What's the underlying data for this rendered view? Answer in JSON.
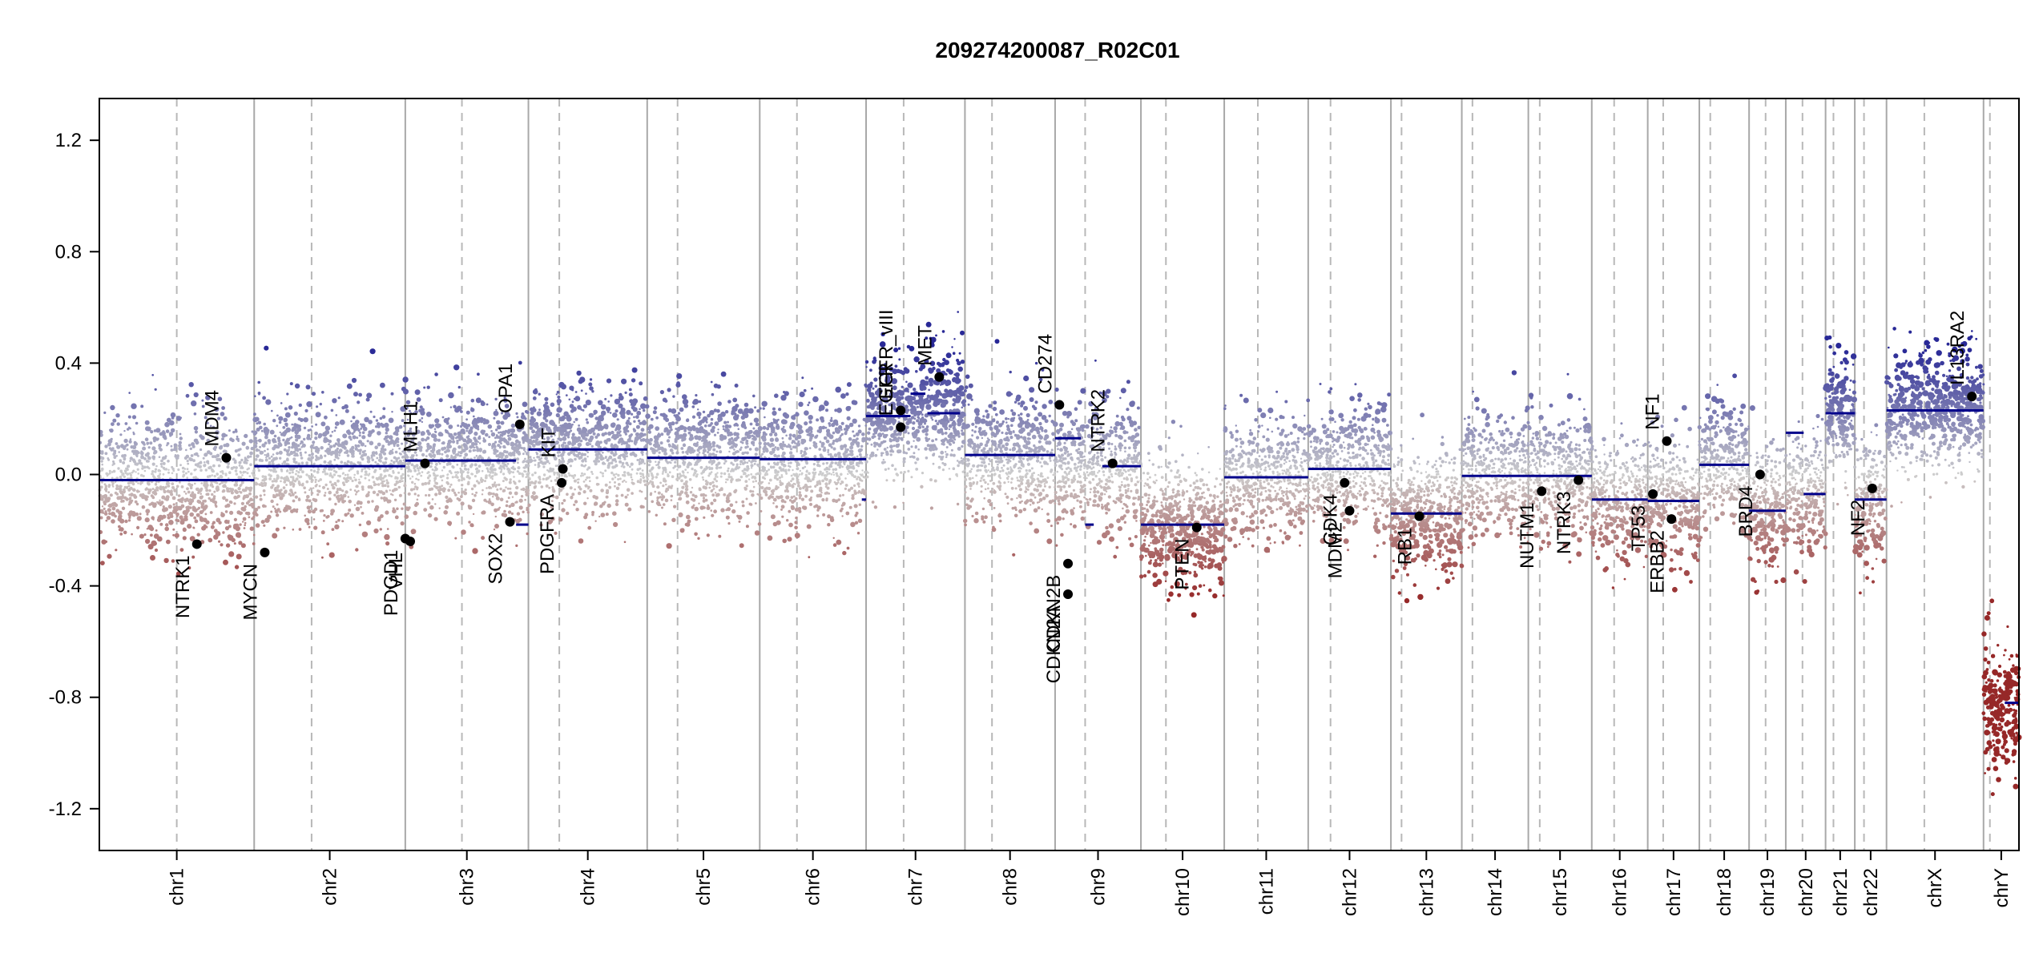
{
  "chart_data": {
    "type": "scatter",
    "title": "209274200087_R02C01",
    "xlabel": "",
    "ylabel": "",
    "ylim": [
      -1.35,
      1.35
    ],
    "yticks": [
      "1.2",
      "0.8",
      "0.4",
      "0.0",
      "-0.4",
      "-0.8",
      "-1.2"
    ],
    "ytick_values": [
      1.2,
      0.8,
      0.4,
      0.0,
      -0.4,
      -0.8,
      -1.2
    ],
    "colors": {
      "gain": "#1a237e",
      "neutral": "#c8c8c8",
      "loss": "#8b1a1a",
      "segment": "#00008b",
      "grid": "#a0a0a0"
    },
    "chromosomes": [
      {
        "name": "chr1",
        "size": 249,
        "centromere": 0.5,
        "mean": -0.02,
        "spread": 0.12
      },
      {
        "name": "chr2",
        "size": 243,
        "centromere": 0.38,
        "mean": 0.03,
        "spread": 0.12
      },
      {
        "name": "chr3",
        "size": 198,
        "centromere": 0.46,
        "mean": 0.05,
        "spread": 0.12
      },
      {
        "name": "chr4",
        "size": 191,
        "centromere": 0.26,
        "mean": 0.09,
        "spread": 0.12
      },
      {
        "name": "chr5",
        "size": 181,
        "centromere": 0.27,
        "mean": 0.06,
        "spread": 0.12
      },
      {
        "name": "chr6",
        "size": 171,
        "centromere": 0.35,
        "mean": 0.05,
        "spread": 0.12
      },
      {
        "name": "chr7",
        "size": 159,
        "centromere": 0.38,
        "mean": 0.21,
        "spread": 0.12
      },
      {
        "name": "chr8",
        "size": 145,
        "centromere": 0.3,
        "mean": 0.07,
        "spread": 0.12
      },
      {
        "name": "chr9",
        "size": 138,
        "centromere": 0.35,
        "mean": 0.03,
        "spread": 0.12
      },
      {
        "name": "chr10",
        "size": 134,
        "centromere": 0.3,
        "mean": -0.18,
        "spread": 0.12
      },
      {
        "name": "chr11",
        "size": 135,
        "centromere": 0.4,
        "mean": -0.01,
        "spread": 0.12
      },
      {
        "name": "chr12",
        "size": 133,
        "centromere": 0.27,
        "mean": 0.02,
        "spread": 0.12
      },
      {
        "name": "chr13",
        "size": 114,
        "centromere": 0.15,
        "mean": -0.14,
        "spread": 0.12
      },
      {
        "name": "chr14",
        "size": 107,
        "centromere": 0.16,
        "mean": -0.005,
        "spread": 0.12
      },
      {
        "name": "chr15",
        "size": 102,
        "centromere": 0.18,
        "mean": -0.005,
        "spread": 0.12
      },
      {
        "name": "chr16",
        "size": 90,
        "centromere": 0.4,
        "mean": -0.09,
        "spread": 0.12
      },
      {
        "name": "chr17",
        "size": 83,
        "centromere": 0.3,
        "mean": -0.09,
        "spread": 0.12
      },
      {
        "name": "chr18",
        "size": 80,
        "centromere": 0.22,
        "mean": 0.035,
        "spread": 0.12
      },
      {
        "name": "chr19",
        "size": 59,
        "centromere": 0.45,
        "mean": -0.13,
        "spread": 0.12
      },
      {
        "name": "chr20",
        "size": 64,
        "centromere": 0.42,
        "mean": -0.07,
        "spread": 0.12
      },
      {
        "name": "chr21",
        "size": 47,
        "centromere": 0.27,
        "mean": 0.22,
        "spread": 0.12
      },
      {
        "name": "chr22",
        "size": 51,
        "centromere": 0.29,
        "mean": -0.09,
        "spread": 0.12
      },
      {
        "name": "chrX",
        "size": 156,
        "centromere": 0.39,
        "mean": 0.23,
        "spread": 0.12
      },
      {
        "name": "chrY",
        "size": 57,
        "centromere": 0.18,
        "mean": -0.82,
        "spread": 0.12
      }
    ],
    "segments": [
      {
        "chr": "chr1",
        "from": 0.0,
        "to": 1.0,
        "value": -0.02
      },
      {
        "chr": "chr2",
        "from": 0.0,
        "to": 1.0,
        "value": 0.03
      },
      {
        "chr": "chr3",
        "from": 0.0,
        "to": 0.9,
        "value": 0.05
      },
      {
        "chr": "chr3",
        "from": 0.9,
        "to": 1.0,
        "value": -0.18
      },
      {
        "chr": "chr4",
        "from": 0.0,
        "to": 1.0,
        "value": 0.09
      },
      {
        "chr": "chr5",
        "from": 0.0,
        "to": 1.0,
        "value": 0.06
      },
      {
        "chr": "chr6",
        "from": 0.0,
        "to": 1.0,
        "value": 0.055
      },
      {
        "chr": "chr6",
        "from": 0.96,
        "to": 1.0,
        "value": -0.09
      },
      {
        "chr": "chr7",
        "from": 0.0,
        "to": 0.45,
        "value": 0.21
      },
      {
        "chr": "chr7",
        "from": 0.45,
        "to": 0.6,
        "value": 0.29
      },
      {
        "chr": "chr7",
        "from": 0.62,
        "to": 0.95,
        "value": 0.22
      },
      {
        "chr": "chr8",
        "from": 0.0,
        "to": 1.0,
        "value": 0.07
      },
      {
        "chr": "chr9",
        "from": 0.0,
        "to": 0.3,
        "value": 0.13
      },
      {
        "chr": "chr9",
        "from": 0.35,
        "to": 0.45,
        "value": -0.18
      },
      {
        "chr": "chr9",
        "from": 0.55,
        "to": 1.0,
        "value": 0.03
      },
      {
        "chr": "chr10",
        "from": 0.0,
        "to": 1.0,
        "value": -0.18
      },
      {
        "chr": "chr11",
        "from": 0.0,
        "to": 1.0,
        "value": -0.01
      },
      {
        "chr": "chr12",
        "from": 0.0,
        "to": 1.0,
        "value": 0.02
      },
      {
        "chr": "chr13",
        "from": 0.0,
        "to": 1.0,
        "value": -0.14
      },
      {
        "chr": "chr14",
        "from": 0.0,
        "to": 1.0,
        "value": -0.005
      },
      {
        "chr": "chr15",
        "from": 0.0,
        "to": 1.0,
        "value": -0.005
      },
      {
        "chr": "chr16",
        "from": 0.0,
        "to": 1.0,
        "value": -0.09
      },
      {
        "chr": "chr17",
        "from": 0.0,
        "to": 1.0,
        "value": -0.095
      },
      {
        "chr": "chr18",
        "from": 0.0,
        "to": 1.0,
        "value": 0.035
      },
      {
        "chr": "chr19",
        "from": 0.0,
        "to": 1.0,
        "value": -0.13
      },
      {
        "chr": "chr20",
        "from": 0.0,
        "to": 0.45,
        "value": 0.15
      },
      {
        "chr": "chr20",
        "from": 0.45,
        "to": 1.0,
        "value": -0.07
      },
      {
        "chr": "chr21",
        "from": 0.0,
        "to": 1.0,
        "value": 0.22
      },
      {
        "chr": "chr22",
        "from": 0.0,
        "to": 1.0,
        "value": -0.09
      },
      {
        "chrX": "",
        "chr": "chrX",
        "from": 0.0,
        "to": 1.0,
        "value": 0.23
      },
      {
        "chr": "chrY",
        "from": 0.6,
        "to": 1.0,
        "value": -0.82
      }
    ],
    "genes": [
      {
        "name": "NTRK1",
        "chr": "chr1",
        "pos": 0.63,
        "value": -0.25,
        "side": "below"
      },
      {
        "name": "MDM4",
        "chr": "chr1",
        "pos": 0.82,
        "value": 0.06,
        "side": "above"
      },
      {
        "name": "MYCN",
        "chr": "chr2",
        "pos": 0.07,
        "value": -0.28,
        "side": "below"
      },
      {
        "name": "PDGD1",
        "chr": "chr2",
        "pos": 1.0,
        "value": -0.23,
        "side": "below"
      },
      {
        "name": "VHL",
        "chr": "chr3",
        "pos": 0.04,
        "value": -0.24,
        "side": "below"
      },
      {
        "name": "MLH1",
        "chr": "chr3",
        "pos": 0.16,
        "value": 0.04,
        "side": "above"
      },
      {
        "name": "SOX2",
        "chr": "chr3",
        "pos": 0.85,
        "value": -0.17,
        "side": "below"
      },
      {
        "name": "OPA1",
        "chr": "chr3",
        "pos": 0.93,
        "value": 0.18,
        "side": "above"
      },
      {
        "name": "PDGFRA",
        "chr": "chr4",
        "pos": 0.28,
        "value": -0.03,
        "side": "below"
      },
      {
        "name": "KIT",
        "chr": "chr4",
        "pos": 0.29,
        "value": 0.02,
        "side": "above"
      },
      {
        "name": "EGFR",
        "chr": "chr7",
        "pos": 0.35,
        "value": 0.17,
        "side": "above"
      },
      {
        "name": "EGFR_vIII",
        "chr": "chr7",
        "pos": 0.35,
        "value": 0.23,
        "side": "above"
      },
      {
        "name": "MET",
        "chr": "chr7",
        "pos": 0.74,
        "value": 0.35,
        "side": "above"
      },
      {
        "name": "CDKN2A",
        "chr": "chr9",
        "pos": 0.15,
        "value": -0.43,
        "side": "below"
      },
      {
        "name": "CDKN2B",
        "chr": "chr9",
        "pos": 0.15,
        "value": -0.32,
        "side": "below"
      },
      {
        "name": "CD274",
        "chr": "chr9",
        "pos": 0.05,
        "value": 0.25,
        "side": "above"
      },
      {
        "name": "NTRK2",
        "chr": "chr9",
        "pos": 0.67,
        "value": 0.04,
        "side": "above"
      },
      {
        "name": "PTEN",
        "chr": "chr10",
        "pos": 0.67,
        "value": -0.19,
        "side": "below"
      },
      {
        "name": "CDK4",
        "chr": "chr12",
        "pos": 0.44,
        "value": -0.03,
        "side": "below"
      },
      {
        "name": "MDM2",
        "chr": "chr12",
        "pos": 0.5,
        "value": -0.13,
        "side": "below"
      },
      {
        "name": "RB1",
        "chr": "chr13",
        "pos": 0.4,
        "value": -0.15,
        "side": "below"
      },
      {
        "name": "NUTM1",
        "chr": "chr15",
        "pos": 0.21,
        "value": -0.06,
        "side": "below"
      },
      {
        "name": "NTRK3",
        "chr": "chr15",
        "pos": 0.79,
        "value": -0.02,
        "side": "below"
      },
      {
        "name": "TP53",
        "chr": "chr17",
        "pos": 0.1,
        "value": -0.07,
        "side": "below"
      },
      {
        "name": "NF1",
        "chr": "chr17",
        "pos": 0.37,
        "value": 0.12,
        "side": "above"
      },
      {
        "name": "ERBB2",
        "chr": "chr17",
        "pos": 0.46,
        "value": -0.16,
        "side": "below"
      },
      {
        "name": "BRD4",
        "chr": "chr19",
        "pos": 0.3,
        "value": 0.0,
        "side": "below"
      },
      {
        "name": "NF2",
        "chr": "chr22",
        "pos": 0.55,
        "value": -0.05,
        "side": "below"
      },
      {
        "name": "IL13RA2",
        "chr": "chrX",
        "pos": 0.88,
        "value": 0.28,
        "side": "above"
      }
    ]
  }
}
